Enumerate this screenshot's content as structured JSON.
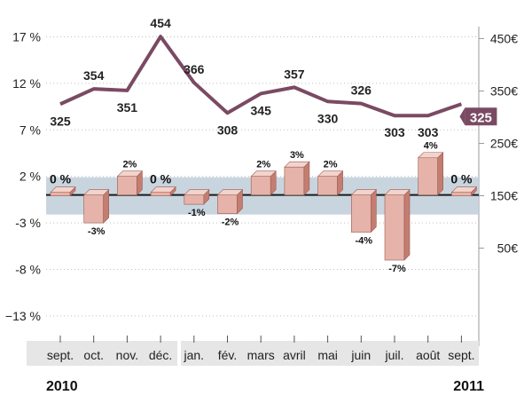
{
  "chart_data": {
    "type": "bar",
    "categories": [
      "sept.",
      "oct.",
      "nov.",
      "déc.",
      "jan.",
      "fév.",
      "mars",
      "avril",
      "mai",
      "juin",
      "juil.",
      "août",
      "sept."
    ],
    "year_labels": {
      "start": "2010",
      "end": "2011"
    },
    "series": [
      {
        "chart_type": "bar",
        "axis": "left",
        "values": [
          0,
          -3,
          2,
          0,
          -1,
          -2,
          2,
          3,
          2,
          -4,
          -7,
          4,
          0
        ],
        "labels": [
          "0 %",
          "-3%",
          "2%",
          "0 %",
          "-1%",
          "-2%",
          "2%",
          "3%",
          "2%",
          "-4%",
          "-7%",
          "4%",
          "0 %"
        ]
      },
      {
        "chart_type": "line",
        "axis": "right",
        "values": [
          325,
          354,
          351,
          454,
          366,
          308,
          345,
          357,
          330,
          326,
          303,
          303,
          325
        ],
        "labels": [
          "325",
          "354",
          "351",
          "454",
          "366",
          "308",
          "345",
          "357",
          "330",
          "326",
          "303",
          "303",
          "325"
        ]
      }
    ],
    "y_left": {
      "ticks": [
        "17 %",
        "12 %",
        "7 %",
        "2 %",
        "-3 %",
        "-8 %",
        "−13 %"
      ]
    },
    "y_right": {
      "ticks": [
        "450€",
        "350€",
        "250€",
        "150€",
        "50€"
      ]
    },
    "colors": {
      "line": "#7a4a63",
      "bar_front": "#e5b3a9",
      "bar_side": "#c47d71",
      "bar_top": "#f3d3cc",
      "band": "#bfced8",
      "axis_strip": "#e6e6e6",
      "last_label_bg": "#7a4a63",
      "grid": "#c0c0c0"
    }
  }
}
